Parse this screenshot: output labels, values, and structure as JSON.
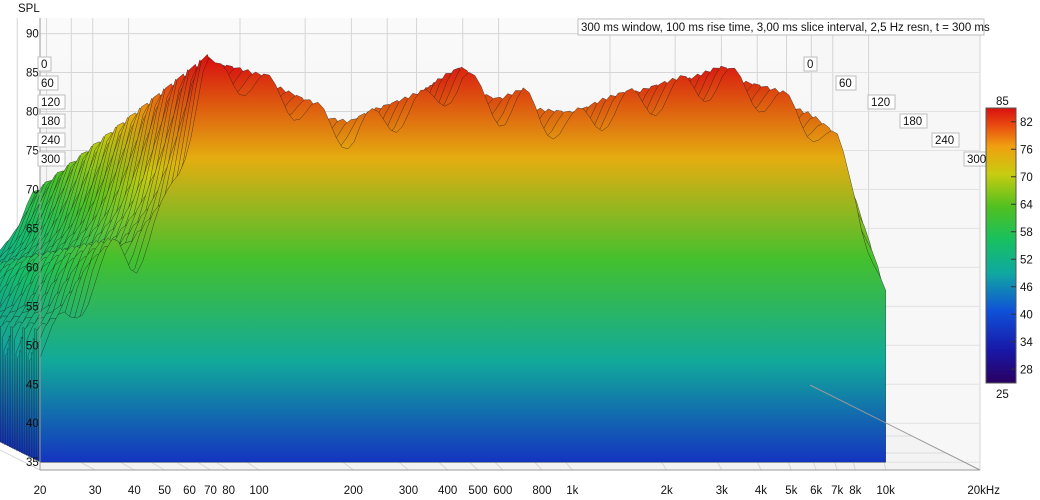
{
  "chart_data": {
    "type": "waterfall",
    "title": "300 ms window, 100 ms rise time, 3,00 ms slice interval, 2,5 Hz resn, t = 300 ms",
    "ylabel": "SPL",
    "ylim": [
      34,
      92
    ],
    "yticks": [
      35,
      40,
      45,
      50,
      55,
      60,
      65,
      70,
      75,
      80,
      85,
      90
    ],
    "xscale": "log",
    "xlim": [
      20,
      20000
    ],
    "xticks": [
      {
        "v": 20,
        "label": "20"
      },
      {
        "v": 30,
        "label": "30"
      },
      {
        "v": 40,
        "label": "40"
      },
      {
        "v": 50,
        "label": "50"
      },
      {
        "v": 60,
        "label": "60"
      },
      {
        "v": 70,
        "label": "70"
      },
      {
        "v": 80,
        "label": "80"
      },
      {
        "v": 100,
        "label": "100"
      },
      {
        "v": 200,
        "label": "200"
      },
      {
        "v": 300,
        "label": "300"
      },
      {
        "v": 400,
        "label": "400"
      },
      {
        "v": 500,
        "label": "500"
      },
      {
        "v": 600,
        "label": "600"
      },
      {
        "v": 800,
        "label": "800"
      },
      {
        "v": 1000,
        "label": "1k"
      },
      {
        "v": 2000,
        "label": "2k"
      },
      {
        "v": 3000,
        "label": "3k"
      },
      {
        "v": 4000,
        "label": "4k"
      },
      {
        "v": 5000,
        "label": "5k"
      },
      {
        "v": 6000,
        "label": "6k"
      },
      {
        "v": 7000,
        "label": "7k"
      },
      {
        "v": 8000,
        "label": "8k"
      },
      {
        "v": 10000,
        "label": "10k"
      },
      {
        "v": 20000,
        "label": "20kHz"
      }
    ],
    "time_axis": {
      "ticks": [
        0,
        60,
        120,
        180,
        240,
        300
      ],
      "labels": [
        "0",
        "60",
        "120",
        "180",
        "240",
        "300"
      ],
      "max": 300
    },
    "colorbar": {
      "min": 25,
      "max": 85,
      "ticks": [
        82,
        76,
        70,
        64,
        58,
        52,
        46,
        40,
        34,
        28
      ],
      "end_labels": [
        "85",
        "25"
      ]
    },
    "front_slice": {
      "time": 0,
      "freq": [
        20,
        25,
        30,
        35,
        40,
        45,
        50,
        55,
        60,
        65,
        68,
        72,
        80,
        90,
        100,
        120,
        140,
        170,
        200,
        250,
        300,
        350,
        400,
        450,
        500,
        600,
        700,
        800,
        1000,
        1300,
        1600,
        2000,
        2500,
        3000,
        3500,
        4000,
        5000,
        6000,
        7000,
        8000,
        9000,
        10000
      ],
      "spl": [
        50,
        53,
        59,
        62,
        61,
        64,
        67,
        72,
        78,
        84,
        86,
        84,
        85,
        84,
        83,
        82,
        80,
        78,
        77,
        79,
        80,
        81,
        83,
        84,
        82,
        80,
        81,
        79,
        78,
        80,
        81,
        82,
        83,
        84,
        83,
        82,
        80,
        78,
        75,
        70,
        62,
        55
      ]
    },
    "decay_floor_db": 36,
    "series_count": 100
  }
}
